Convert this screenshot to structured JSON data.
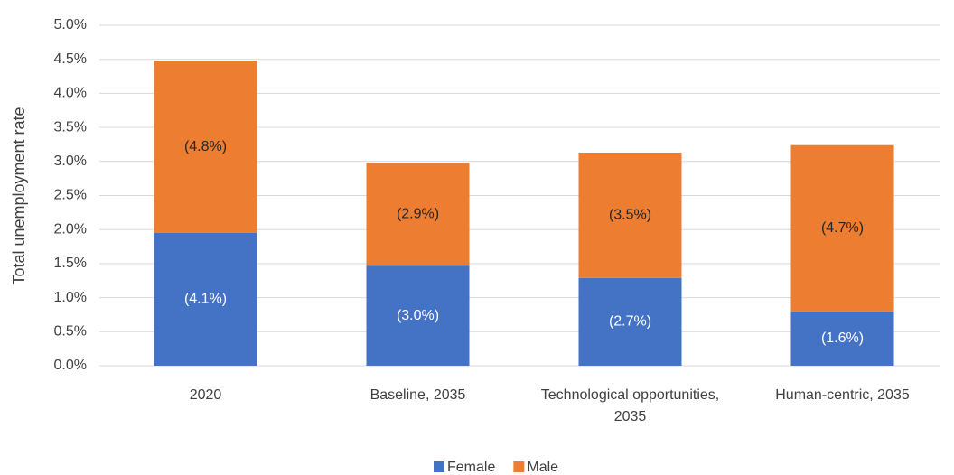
{
  "chart_data": {
    "type": "stacked_bar",
    "y_label": "Total unemployment rate",
    "categories": [
      "2020",
      "Baseline, 2035",
      "Technological opportunities, 2035",
      "Human-centric, 2035"
    ],
    "series": [
      {
        "name": "Female",
        "color": "#4472c4",
        "values": [
          1.95,
          1.47,
          1.29,
          0.8
        ],
        "annotations": [
          "(4.1%)",
          "(3.0%)",
          "(2.7%)",
          "(1.6%)"
        ],
        "annotation_color": "#ffffff"
      },
      {
        "name": "Male",
        "color": "#ed7d31",
        "values": [
          2.53,
          1.51,
          1.84,
          2.44
        ],
        "annotations": [
          "(4.8%)",
          "(2.9%)",
          "(3.5%)",
          "(4.7%)"
        ],
        "annotation_color": "#262626"
      }
    ],
    "ylim": [
      0,
      5
    ],
    "yticks": [
      {
        "value": 0,
        "label": "0.0%"
      },
      {
        "value": 0.5,
        "label": "0.5%"
      },
      {
        "value": 1,
        "label": "1.0%"
      },
      {
        "value": 1.5,
        "label": "1.5%"
      },
      {
        "value": 2,
        "label": "2.0%"
      },
      {
        "value": 2.5,
        "label": "2.5%"
      },
      {
        "value": 3,
        "label": "3.0%"
      },
      {
        "value": 3.5,
        "label": "3.5%"
      },
      {
        "value": 4,
        "label": "4.0%"
      },
      {
        "value": 4.5,
        "label": "4.5%"
      },
      {
        "value": 5,
        "label": "5.0%"
      }
    ],
    "grid": true,
    "legend": "bottom"
  }
}
